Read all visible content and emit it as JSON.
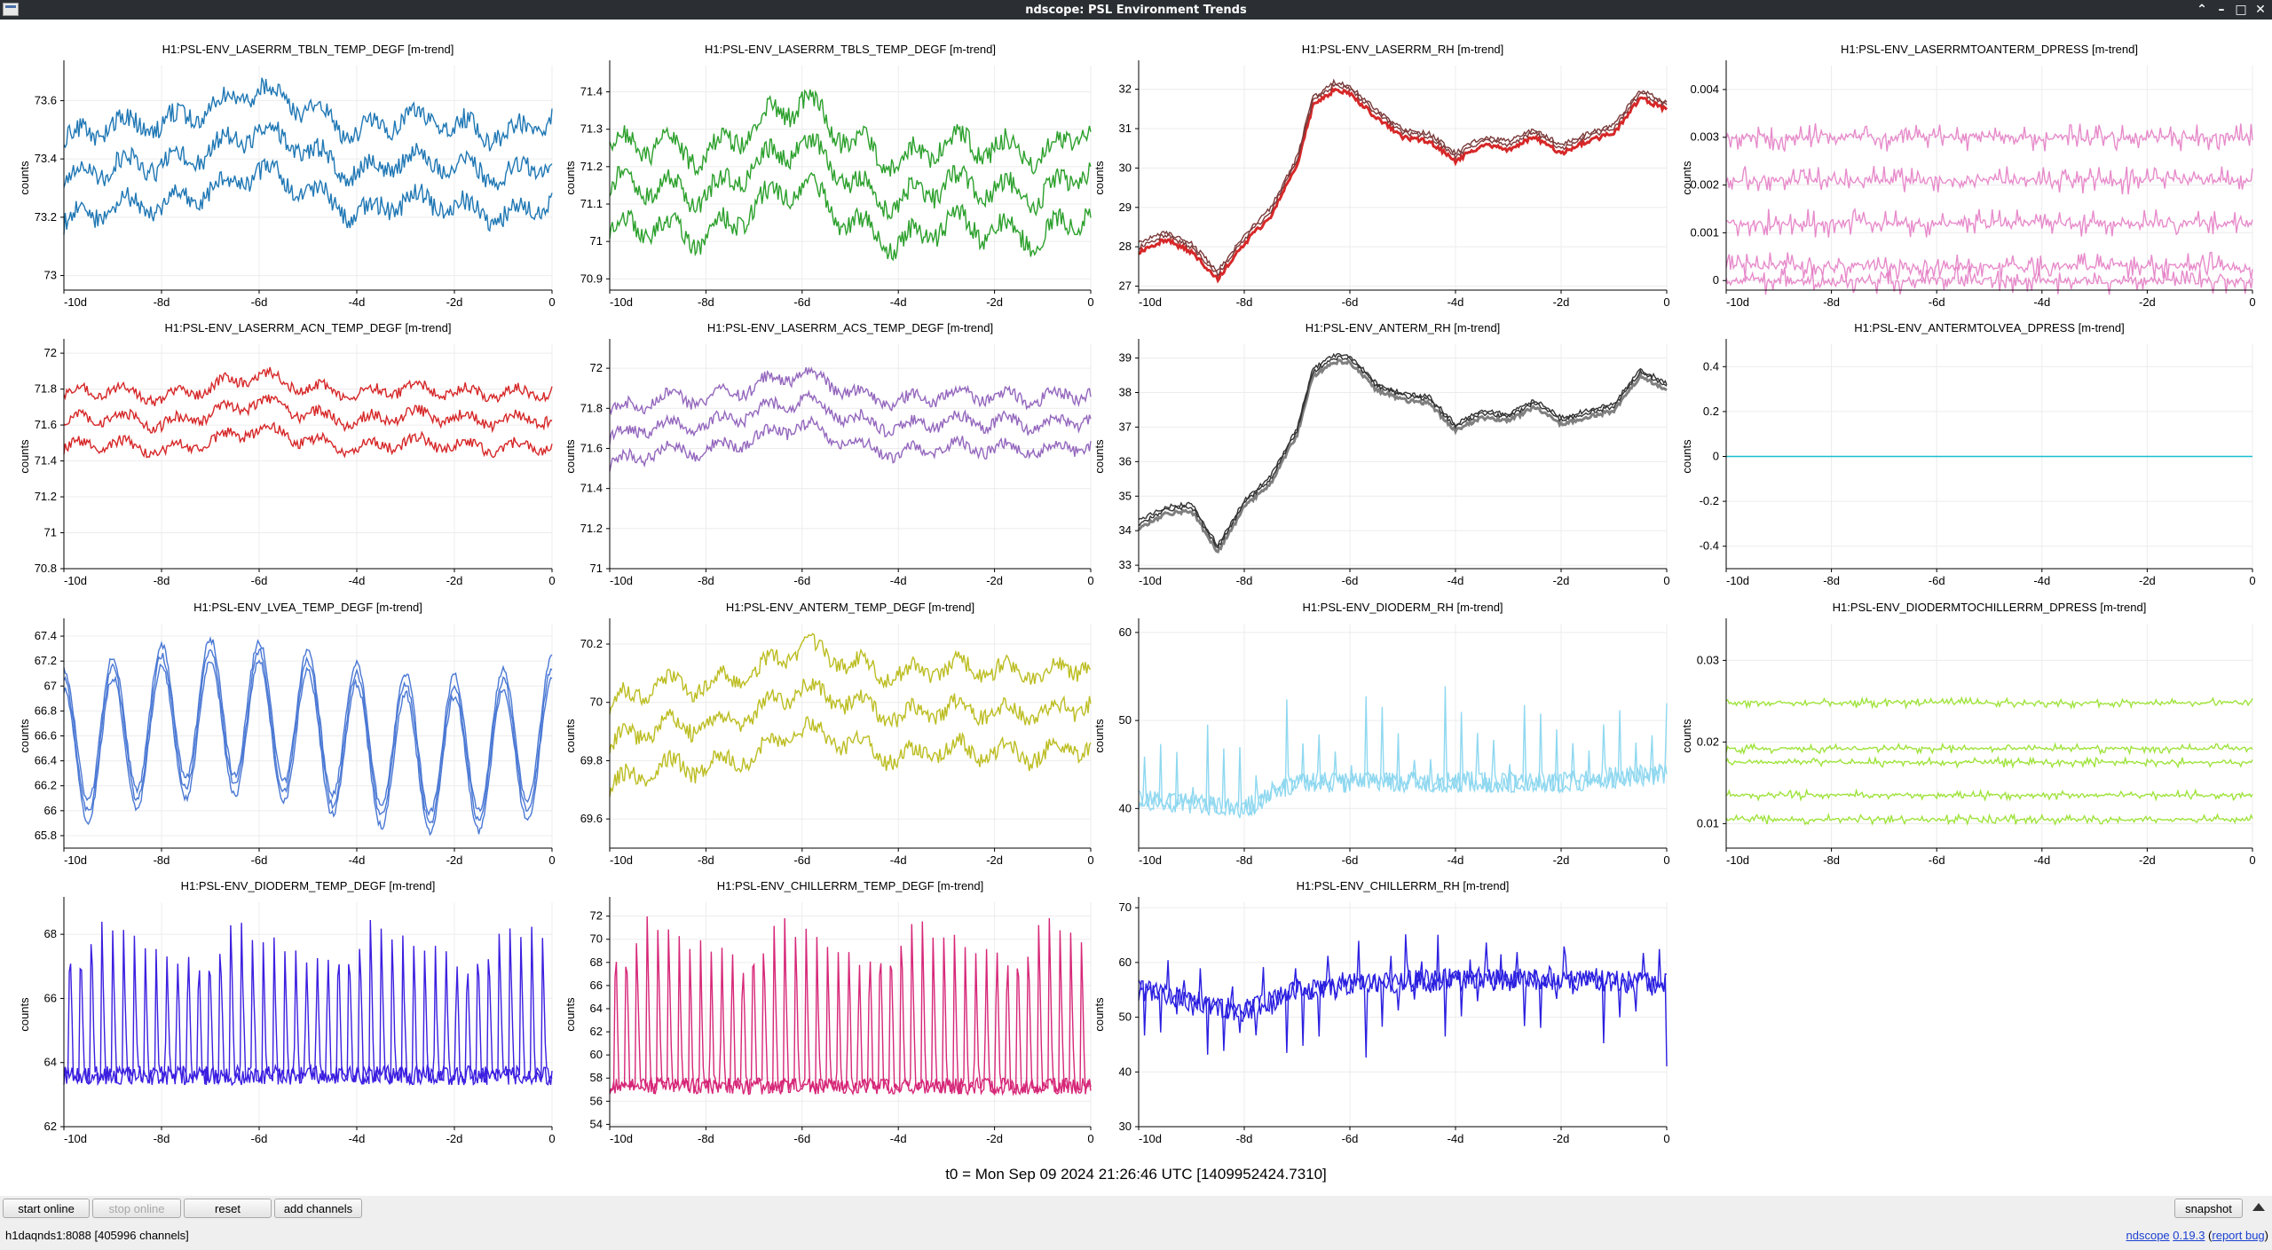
{
  "window": {
    "title": "ndscope: PSL Environment Trends"
  },
  "x_axis": {
    "tick_labels": [
      "-10d",
      "-8d",
      "-6d",
      "-4d",
      "-2d",
      "0"
    ],
    "tick_values": [
      -10,
      -8,
      -6,
      -4,
      -2,
      0
    ]
  },
  "y_axis_label": "counts",
  "t0_label": "t0 = Mon Sep 09 2024 21:26:46 UTC [1409952424.7310]",
  "buttons": {
    "start_online": "start online",
    "stop_online": "stop online",
    "reset": "reset",
    "add_channels": "add channels",
    "snapshot": "snapshot"
  },
  "status": {
    "server": "h1daqnds1:8088  [405996 channels]",
    "app_name": "ndscope",
    "version": "0.19.3",
    "report_bug": "report bug"
  },
  "chart_data": [
    {
      "type": "line",
      "title": "H1:PSL-ENV_LASERRM_TBLN_TEMP_DEGF [m-trend]",
      "ylabel": "counts",
      "color": "#1f77b4",
      "ylim": [
        72.95,
        73.72
      ],
      "yticks": [
        73,
        73.2,
        73.4,
        73.6
      ],
      "ytick_labels": [
        "73",
        "73.2",
        "73.4",
        "73.6"
      ],
      "mode": "band3",
      "x": [
        -10,
        -9,
        -8,
        -7,
        -6,
        -5,
        -4,
        -3,
        -2,
        -1,
        0
      ],
      "y": [
        73.32,
        73.38,
        73.38,
        73.43,
        73.5,
        73.43,
        73.35,
        73.4,
        73.38,
        73.34,
        73.4
      ],
      "band_offset": 0.14,
      "noise": 0.035
    },
    {
      "type": "line",
      "title": "H1:PSL-ENV_LASERRM_TBLS_TEMP_DEGF [m-trend]",
      "ylabel": "counts",
      "color": "#2ca02c",
      "ylim": [
        70.87,
        71.47
      ],
      "yticks": [
        70.9,
        71,
        71.1,
        71.2,
        71.3,
        71.4
      ],
      "ytick_labels": [
        "70.9",
        "71",
        "71.1",
        "71.2",
        "71.3",
        "71.4"
      ],
      "mode": "band3",
      "x": [
        -10,
        -9,
        -8,
        -7,
        -6,
        -5,
        -4,
        -3,
        -2,
        -1,
        0
      ],
      "y": [
        71.15,
        71.15,
        71.12,
        71.2,
        71.27,
        71.16,
        71.1,
        71.16,
        71.14,
        71.12,
        71.2
      ],
      "band_offset": 0.11,
      "noise": 0.028
    },
    {
      "type": "line",
      "title": "H1:PSL-ENV_LASERRM_RH [m-trend]",
      "ylabel": "counts",
      "color": "#d62728",
      "ylim": [
        26.9,
        32.6
      ],
      "yticks": [
        27,
        28,
        29,
        30,
        31,
        32
      ],
      "ytick_labels": [
        "27",
        "28",
        "29",
        "30",
        "31",
        "32"
      ],
      "mode": "smooth",
      "x": [
        -10,
        -9.5,
        -9,
        -8.5,
        -8,
        -7.5,
        -7,
        -6.7,
        -6.3,
        -6,
        -5.5,
        -5,
        -4.5,
        -4,
        -3.5,
        -3,
        -2.5,
        -2,
        -1.5,
        -1,
        -0.5,
        0
      ],
      "y": [
        28.0,
        28.3,
        28.0,
        27.3,
        28.2,
        28.9,
        30.2,
        31.7,
        32.1,
        32.0,
        31.4,
        30.9,
        30.8,
        30.3,
        30.7,
        30.6,
        30.9,
        30.5,
        30.8,
        31.0,
        31.9,
        31.6
      ],
      "noise": 0.06,
      "line_color": "#7a3a3a"
    },
    {
      "type": "line",
      "title": "H1:PSL-ENV_LASERRMTOANTERM_DPRESS [m-trend]",
      "ylabel": "counts",
      "color": "#e377c2",
      "ylim": [
        -0.0002,
        0.0045
      ],
      "yticks": [
        0,
        0.001,
        0.002,
        0.003,
        0.004
      ],
      "ytick_labels": [
        "0",
        "0.001",
        "0.002",
        "0.003",
        "0.004"
      ],
      "mode": "bands",
      "levels": [
        0.0,
        0.0003,
        0.0012,
        0.0021,
        0.003
      ],
      "noise": 0.0003
    },
    {
      "type": "line",
      "title": "H1:PSL-ENV_LASERRM_ACN_TEMP_DEGF [m-trend]",
      "ylabel": "counts",
      "color": "#d62728",
      "ylim": [
        70.8,
        72.05
      ],
      "yticks": [
        70.8,
        71,
        71.2,
        71.4,
        71.6,
        71.8,
        72
      ],
      "ytick_labels": [
        "70.8",
        "71",
        "71.2",
        "71.4",
        "71.6",
        "71.8",
        "72"
      ],
      "mode": "band3",
      "x": [
        -10,
        -9,
        -8,
        -7,
        -6,
        -5,
        -4,
        -3,
        -2,
        -1,
        0
      ],
      "y": [
        71.62,
        71.65,
        71.6,
        71.66,
        71.73,
        71.66,
        71.62,
        71.66,
        71.64,
        71.62,
        71.64
      ],
      "band_offset": 0.15,
      "noise": 0.03
    },
    {
      "type": "line",
      "title": "H1:PSL-ENV_LASERRM_ACS_TEMP_DEGF [m-trend]",
      "ylabel": "counts",
      "color": "#9467bd",
      "ylim": [
        71.0,
        72.12
      ],
      "yticks": [
        71,
        71.2,
        71.4,
        71.6,
        71.8,
        72
      ],
      "ytick_labels": [
        "71",
        "71.2",
        "71.4",
        "71.6",
        "71.8",
        "72"
      ],
      "mode": "band3",
      "x": [
        -10,
        -9,
        -8,
        -7,
        -6,
        -5,
        -4,
        -3,
        -2,
        -1,
        0
      ],
      "y": [
        71.65,
        71.72,
        71.72,
        71.78,
        71.85,
        71.75,
        71.7,
        71.74,
        71.73,
        71.72,
        71.75
      ],
      "band_offset": 0.13,
      "noise": 0.03
    },
    {
      "type": "line",
      "title": "H1:PSL-ENV_ANTERM_RH [m-trend]",
      "ylabel": "counts",
      "color": "#7f7f7f",
      "ylim": [
        32.9,
        39.4
      ],
      "yticks": [
        33,
        34,
        35,
        36,
        37,
        38,
        39
      ],
      "ytick_labels": [
        "33",
        "34",
        "35",
        "36",
        "37",
        "38",
        "39"
      ],
      "mode": "smooth",
      "x": [
        -10,
        -9.5,
        -9,
        -8.5,
        -8,
        -7.5,
        -7,
        -6.7,
        -6.3,
        -6,
        -5.5,
        -5,
        -4.5,
        -4,
        -3.5,
        -3,
        -2.5,
        -2,
        -1.5,
        -1,
        -0.5,
        0
      ],
      "y": [
        34.2,
        34.6,
        34.7,
        33.5,
        34.8,
        35.5,
        36.9,
        38.6,
        39.0,
        39.0,
        38.2,
        37.9,
        37.8,
        37.0,
        37.4,
        37.3,
        37.7,
        37.2,
        37.4,
        37.6,
        38.6,
        38.2
      ],
      "noise": 0.06,
      "line_color": "#333333"
    },
    {
      "type": "line",
      "title": "H1:PSL-ENV_ANTERMTOLVEA_DPRESS [m-trend]",
      "ylabel": "counts",
      "color": "#17becf",
      "ylim": [
        -0.5,
        0.5
      ],
      "yticks": [
        -0.4,
        -0.2,
        0,
        0.2,
        0.4
      ],
      "ytick_labels": [
        "-0.4",
        "-0.2",
        "0",
        "0.2",
        "0.4"
      ],
      "mode": "flat",
      "x": [
        -10,
        0
      ],
      "y": [
        0,
        0
      ]
    },
    {
      "type": "line",
      "title": "H1:PSL-ENV_LVEA_TEMP_DEGF [m-trend]",
      "ylabel": "counts",
      "color": "#4a78d4",
      "ylim": [
        65.7,
        67.5
      ],
      "yticks": [
        65.8,
        66,
        66.2,
        66.4,
        66.6,
        66.8,
        67,
        67.2,
        67.4
      ],
      "ytick_labels": [
        "65.8",
        "66",
        "66.2",
        "66.4",
        "66.6",
        "66.8",
        "67",
        "67.2",
        "67.4"
      ],
      "mode": "sine",
      "center": 66.6,
      "amplitude": 0.55,
      "period": 1.0,
      "band_offset": 0.08,
      "noise": 0.03
    },
    {
      "type": "line",
      "title": "H1:PSL-ENV_ANTERM_TEMP_DEGF [m-trend]",
      "ylabel": "counts",
      "color": "#bcbd22",
      "ylim": [
        69.5,
        70.27
      ],
      "yticks": [
        69.6,
        69.8,
        70,
        70.2
      ],
      "ytick_labels": [
        "69.6",
        "69.8",
        "70",
        "70.2"
      ],
      "mode": "band3",
      "x": [
        -10,
        -9,
        -8,
        -7,
        -6,
        -5,
        -4,
        -3,
        -2,
        -1,
        0
      ],
      "y": [
        69.85,
        69.92,
        69.92,
        69.96,
        70.05,
        70.0,
        69.95,
        69.98,
        69.97,
        69.96,
        70.0
      ],
      "band_offset": 0.14,
      "noise": 0.03
    },
    {
      "type": "line",
      "title": "H1:PSL-ENV_DIODERM_RH [m-trend]",
      "ylabel": "counts",
      "color": "#8fd8f0",
      "ylim": [
        35.5,
        61
      ],
      "yticks": [
        40,
        50,
        60
      ],
      "ytick_labels": [
        "40",
        "50",
        "60"
      ],
      "mode": "spikes",
      "base_x": [
        -10,
        -8,
        -7,
        -6,
        -4,
        -2,
        0
      ],
      "base_y": [
        41,
        40,
        43,
        43,
        43,
        43,
        44
      ],
      "spike_height": 13,
      "spike_period": 0.3,
      "noise": 1.2
    },
    {
      "type": "line",
      "title": "H1:PSL-ENV_DIODERMTOCHILLERRM_DPRESS [m-trend]",
      "ylabel": "counts",
      "color": "#8ede1a",
      "ylim": [
        0.007,
        0.0345
      ],
      "yticks": [
        0.01,
        0.02,
        0.03
      ],
      "ytick_labels": [
        "0.01",
        "0.02",
        "0.03"
      ],
      "mode": "bands",
      "levels": [
        0.0105,
        0.0135,
        0.0175,
        0.0192,
        0.0248
      ],
      "noise": 0.0006
    },
    {
      "type": "line",
      "title": "H1:PSL-ENV_DIODERM_TEMP_DEGF [m-trend]",
      "ylabel": "counts",
      "color": "#3b1fe0",
      "ylim": [
        62.0,
        69.0
      ],
      "yticks": [
        62,
        64,
        66,
        68
      ],
      "ytick_labels": [
        "62",
        "64",
        "66",
        "68"
      ],
      "mode": "sawtooth",
      "base": 63.6,
      "peak": 68.3,
      "period": 0.22,
      "noise": 0.3
    },
    {
      "type": "line",
      "title": "H1:PSL-ENV_CHILLERRM_TEMP_DEGF [m-trend]",
      "ylabel": "counts",
      "color": "#d62778",
      "ylim": [
        53.8,
        73.2
      ],
      "yticks": [
        54,
        56,
        58,
        60,
        62,
        64,
        66,
        68,
        70,
        72
      ],
      "ytick_labels": [
        "54",
        "56",
        "58",
        "60",
        "62",
        "64",
        "66",
        "68",
        "70",
        "72"
      ],
      "mode": "sawtooth",
      "base": 57.3,
      "peak": 71.5,
      "period": 0.22,
      "noise": 0.7
    },
    {
      "type": "line",
      "title": "H1:PSL-ENV_CHILLERRM_RH [m-trend]",
      "ylabel": "counts",
      "color": "#2b1fe0",
      "ylim": [
        30,
        71
      ],
      "yticks": [
        30,
        40,
        50,
        60,
        70
      ],
      "ytick_labels": [
        "30",
        "40",
        "50",
        "60",
        "70"
      ],
      "mode": "spikes_down",
      "base_x": [
        -10,
        -8,
        -7,
        -6,
        -4,
        -2,
        0
      ],
      "base_y": [
        55,
        51,
        55,
        56,
        57,
        57,
        56
      ],
      "spike_depth": 16,
      "spike_period": 0.3,
      "noise": 2.0
    }
  ]
}
